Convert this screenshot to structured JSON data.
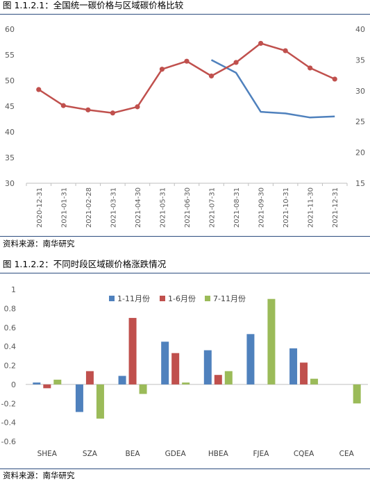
{
  "figure1": {
    "title": "图 1.1.2.1：全国统一碳价格与区域碳价格比较",
    "source": "资料来源：南华研究"
  },
  "figure2": {
    "title": "图 1.1.2.2：不同时段区域碳价格涨跌情况",
    "source": "资料来源：南华研究"
  },
  "colors": {
    "red_line": "#c0504d",
    "blue_line": "#4f81bd",
    "bar_blue": "#4f81bd",
    "bar_red": "#c0504d",
    "bar_green": "#9bbb59",
    "rule": "#2b4c7e"
  },
  "chart_data": [
    {
      "type": "line",
      "title": "",
      "categories": [
        "2020-12-31",
        "2021-01-31",
        "2021-02-28",
        "2021-03-31",
        "2021-04-30",
        "2021-05-31",
        "2021-06-30",
        "2021-07-31",
        "2021-08-31",
        "2021-09-30",
        "2021-10-31",
        "2021-11-30",
        "2021-12-31"
      ],
      "y_left": {
        "range": [
          30,
          60
        ],
        "ticks": [
          "30",
          "35",
          "40",
          "45",
          "50",
          "55",
          "60"
        ]
      },
      "y_right": {
        "range": [
          15,
          40
        ],
        "ticks": [
          "15",
          "20",
          "25",
          "30",
          "35",
          "40"
        ]
      },
      "series": [
        {
          "axis": "left",
          "color": "#4f81bd",
          "markers": false,
          "values": [
            null,
            null,
            null,
            null,
            null,
            null,
            null,
            54.0,
            51.5,
            43.9,
            43.6,
            42.8,
            43.0
          ]
        },
        {
          "axis": "right",
          "color": "#c0504d",
          "markers": true,
          "values": [
            30.2,
            27.6,
            26.9,
            26.4,
            27.4,
            33.5,
            34.8,
            32.4,
            34.6,
            37.7,
            36.5,
            33.7,
            31.9
          ]
        }
      ],
      "grid": false,
      "legend": "none"
    },
    {
      "type": "bar",
      "title": "",
      "categories": [
        "SHEA",
        "SZA",
        "BEA",
        "GDEA",
        "HBEA",
        "FJEA",
        "CQEA",
        "CEA"
      ],
      "y_range": [
        -0.6,
        1.0
      ],
      "y_ticks": [
        "-0.6",
        "-0.4",
        "-0.2",
        "0",
        "0.2",
        "0.4",
        "0.6",
        "0.8",
        "1"
      ],
      "series": [
        {
          "name": "1-11月份",
          "color": "#4f81bd",
          "values": [
            0.02,
            -0.29,
            0.09,
            0.45,
            0.36,
            0.53,
            0.38,
            null
          ]
        },
        {
          "name": "1-6月份",
          "color": "#c0504d",
          "values": [
            -0.04,
            0.14,
            0.7,
            0.33,
            0.1,
            null,
            0.23,
            null
          ]
        },
        {
          "name": "7-11月份",
          "color": "#9bbb59",
          "values": [
            0.05,
            -0.36,
            -0.1,
            0.02,
            0.14,
            0.9,
            0.06,
            -0.2
          ]
        }
      ],
      "grid": false,
      "legend": "top"
    }
  ]
}
